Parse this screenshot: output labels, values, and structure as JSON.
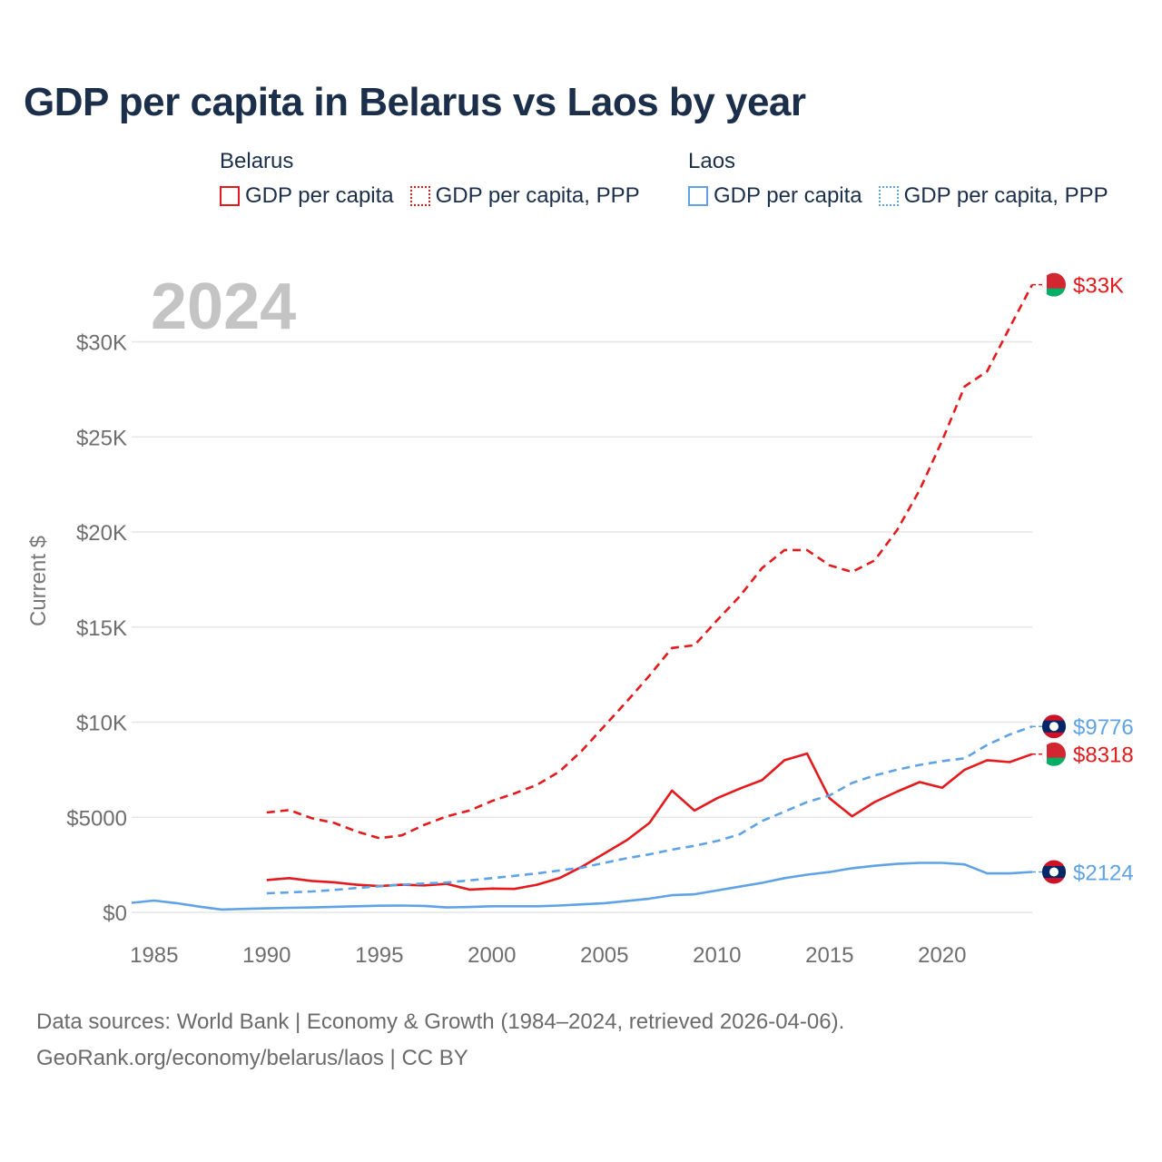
{
  "title": "GDP per capita in Belarus vs Laos by year",
  "legend": {
    "groups": [
      {
        "name": "Belarus",
        "items": [
          {
            "label": "GDP per capita",
            "color": "#e41a1c",
            "style": "solid"
          },
          {
            "label": "GDP per capita, PPP",
            "color": "#e41a1c",
            "style": "dotted"
          }
        ]
      },
      {
        "name": "Laos",
        "items": [
          {
            "label": "GDP per capita",
            "color": "#5fa3e6",
            "style": "solid"
          },
          {
            "label": "GDP per capita, PPP",
            "color": "#5fa3e6",
            "style": "dotted"
          }
        ]
      }
    ]
  },
  "year_watermark": "2024",
  "footer": {
    "line1": "Data sources: World Bank | Economy & Growth (1984–2024, retrieved 2026-04-06).",
    "line2": "GeoRank.org/economy/belarus/laos | CC BY"
  },
  "chart_data": {
    "type": "line",
    "title": "GDP per capita in Belarus vs Laos by year",
    "xlabel": "",
    "ylabel": "Current $",
    "xlim": [
      1984,
      2024
    ],
    "ylim": [
      0,
      33000
    ],
    "x_ticks": [
      1985,
      1990,
      1995,
      2000,
      2005,
      2010,
      2015,
      2020
    ],
    "y_ticks": [
      0,
      5000,
      10000,
      15000,
      20000,
      25000,
      30000
    ],
    "y_tick_labels": [
      "$0",
      "$5000",
      "$10K",
      "$15K",
      "$20K",
      "$25K",
      "$30K"
    ],
    "grid": true,
    "series": [
      {
        "name": "Belarus GDP per capita, PPP",
        "country": "Belarus",
        "color": "#e41a1c",
        "dashed": true,
        "end_label": "$33K",
        "flag": "belarus",
        "x": [
          1990,
          1991,
          1992,
          1993,
          1994,
          1995,
          1996,
          1997,
          1998,
          1999,
          2000,
          2001,
          2002,
          2003,
          2004,
          2005,
          2006,
          2007,
          2008,
          2009,
          2010,
          2011,
          2012,
          2013,
          2014,
          2015,
          2016,
          2017,
          2018,
          2019,
          2020,
          2021,
          2022,
          2023,
          2024
        ],
        "values": [
          5250,
          5380,
          4950,
          4700,
          4250,
          3900,
          4050,
          4600,
          5050,
          5350,
          5850,
          6250,
          6700,
          7400,
          8500,
          9800,
          11100,
          12450,
          13900,
          14050,
          15350,
          16600,
          18100,
          19050,
          19050,
          18250,
          17900,
          18500,
          20100,
          22200,
          24800,
          27650,
          28450,
          30750,
          33000
        ]
      },
      {
        "name": "Belarus GDP per capita",
        "country": "Belarus",
        "color": "#e41a1c",
        "dashed": false,
        "end_label": "$8318",
        "flag": "belarus",
        "x": [
          1990,
          1991,
          1992,
          1993,
          1994,
          1995,
          1996,
          1997,
          1998,
          1999,
          2000,
          2001,
          2002,
          2003,
          2004,
          2005,
          2006,
          2007,
          2008,
          2009,
          2010,
          2011,
          2012,
          2013,
          2014,
          2015,
          2016,
          2017,
          2018,
          2019,
          2020,
          2021,
          2022,
          2023,
          2024
        ],
        "values": [
          1700,
          1800,
          1650,
          1580,
          1450,
          1380,
          1450,
          1420,
          1500,
          1200,
          1250,
          1230,
          1450,
          1800,
          2400,
          3100,
          3800,
          4700,
          6400,
          5350,
          6000,
          6500,
          6950,
          8000,
          8350,
          6000,
          5050,
          5800,
          6350,
          6850,
          6550,
          7500,
          8000,
          7900,
          8318
        ]
      },
      {
        "name": "Laos GDP per capita, PPP",
        "country": "Laos",
        "color": "#5fa3e6",
        "dashed": true,
        "end_label": "$9776",
        "flag": "laos",
        "x": [
          1990,
          1991,
          1992,
          1993,
          1994,
          1995,
          1996,
          1997,
          1998,
          1999,
          2000,
          2001,
          2002,
          2003,
          2004,
          2005,
          2006,
          2007,
          2008,
          2009,
          2010,
          2011,
          2012,
          2013,
          2014,
          2015,
          2016,
          2017,
          2018,
          2019,
          2020,
          2021,
          2022,
          2023,
          2024
        ],
        "values": [
          1000,
          1050,
          1100,
          1180,
          1280,
          1370,
          1450,
          1520,
          1570,
          1680,
          1800,
          1920,
          2050,
          2200,
          2350,
          2600,
          2850,
          3050,
          3300,
          3500,
          3750,
          4100,
          4800,
          5300,
          5800,
          6150,
          6800,
          7200,
          7500,
          7750,
          7950,
          8100,
          8800,
          9350,
          9776
        ]
      },
      {
        "name": "Laos GDP per capita",
        "country": "Laos",
        "color": "#5fa3e6",
        "dashed": false,
        "end_label": "$2124",
        "flag": "laos",
        "x": [
          1984,
          1985,
          1986,
          1987,
          1988,
          1989,
          1990,
          1991,
          1992,
          1993,
          1994,
          1995,
          1996,
          1997,
          1998,
          1999,
          2000,
          2001,
          2002,
          2003,
          2004,
          2005,
          2006,
          2007,
          2008,
          2009,
          2010,
          2011,
          2012,
          2013,
          2014,
          2015,
          2016,
          2017,
          2018,
          2019,
          2020,
          2021,
          2022,
          2023,
          2024
        ],
        "values": [
          500,
          620,
          480,
          300,
          150,
          180,
          210,
          240,
          260,
          290,
          320,
          350,
          360,
          340,
          260,
          280,
          320,
          320,
          320,
          360,
          420,
          480,
          600,
          720,
          900,
          950,
          1150,
          1350,
          1550,
          1800,
          1980,
          2120,
          2320,
          2450,
          2550,
          2600,
          2600,
          2520,
          2050,
          2050,
          2124
        ]
      }
    ]
  }
}
